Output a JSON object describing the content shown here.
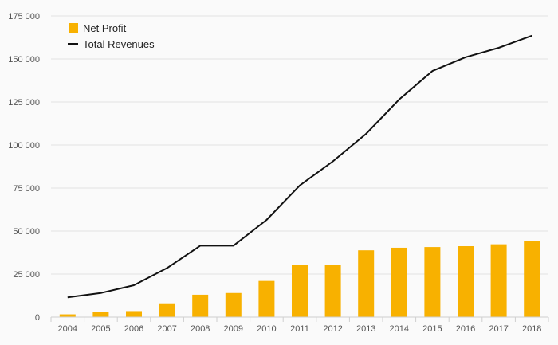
{
  "chart_data": {
    "type": "bar",
    "categories": [
      "2004",
      "2005",
      "2006",
      "2007",
      "2008",
      "2009",
      "2010",
      "2011",
      "2012",
      "2013",
      "2014",
      "2015",
      "2016",
      "2017",
      "2018"
    ],
    "series": [
      {
        "name": "Net Profit",
        "type": "bar",
        "color": "#f8b100",
        "values": [
          1600,
          3000,
          3500,
          8000,
          13000,
          14000,
          21000,
          30500,
          30500,
          38800,
          40300,
          40700,
          41200,
          42300,
          44000
        ]
      },
      {
        "name": "Total Revenues",
        "type": "line",
        "color": "#111111",
        "values": [
          11500,
          14000,
          18500,
          28500,
          41500,
          41500,
          56500,
          76500,
          90500,
          106500,
          126500,
          143000,
          151000,
          156500,
          163500
        ]
      }
    ],
    "yticks": [
      0,
      25000,
      50000,
      75000,
      100000,
      125000,
      150000,
      175000
    ],
    "ytick_labels": [
      "0",
      "25 000",
      "50 000",
      "75 000",
      "100 000",
      "125 000",
      "150 000",
      "175 000"
    ],
    "ylim": [
      0,
      175000
    ],
    "title": "",
    "xlabel": "",
    "ylabel": "",
    "legend": {
      "position": "top-left",
      "labels": [
        "Net Profit",
        "Total Revenues"
      ]
    }
  }
}
